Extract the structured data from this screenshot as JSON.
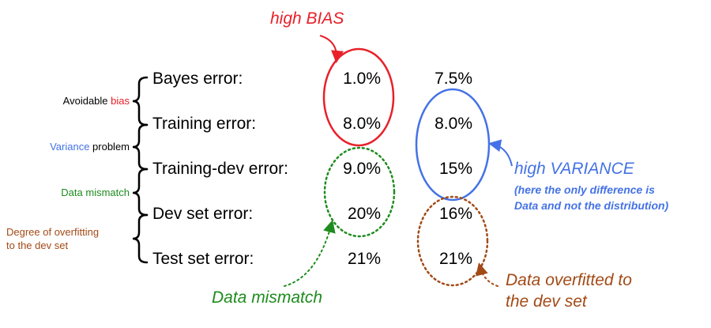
{
  "rows": [
    {
      "label": "Bayes error:",
      "col1": "1.0%",
      "col2": "7.5%"
    },
    {
      "label": "Training error:",
      "col1": "8.0%",
      "col2": "8.0%"
    },
    {
      "label": "Training-dev error:",
      "col1": "9.0%",
      "col2": "15%"
    },
    {
      "label": "Dev set error:",
      "col1": "20%",
      "col2": "16%"
    },
    {
      "label": "Test set error:",
      "col1": "21%",
      "col2": "21%"
    }
  ],
  "groups": {
    "avoidable_bias": {
      "prefix": "Avoidable ",
      "highlight": "bias"
    },
    "variance_problem": {
      "highlight": "Variance",
      "suffix": " problem"
    },
    "data_mismatch": "Data mismatch",
    "overfitting_line1": "Degree of overfitting",
    "overfitting_line2": "to the dev set"
  },
  "callouts": {
    "high_bias": "high BIAS",
    "high_variance": "high VARIANCE",
    "variance_note_line1": "(here the only difference is",
    "variance_note_line2": "Data and not the distribution)",
    "data_mismatch": "Data mismatch",
    "overfit_line1": "Data overfitted to",
    "overfit_line2": "the dev set"
  },
  "colors": {
    "bias": "#e8202a",
    "variance": "#4472e6",
    "mismatch": "#1e8c1e",
    "overfit": "#a24a16",
    "text": "#000000"
  }
}
